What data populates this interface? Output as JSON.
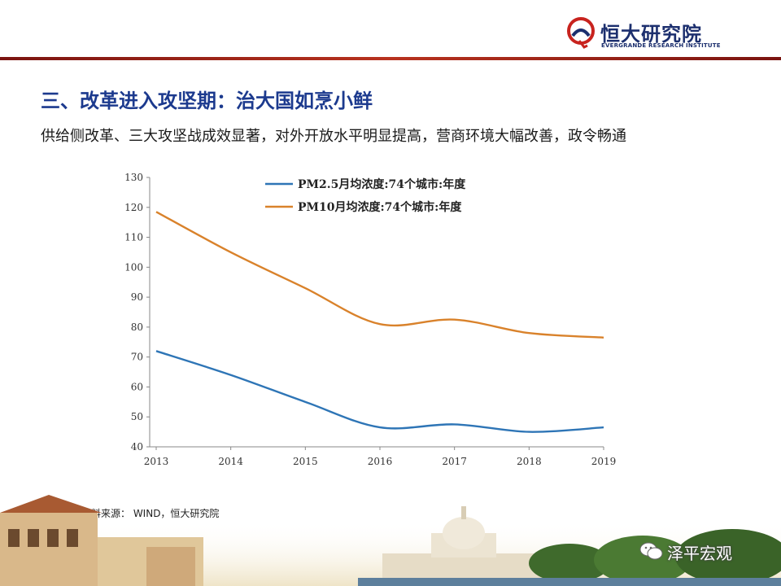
{
  "logo": {
    "name_cn": "恒大研究院",
    "name_en": "EVERGRANDE RESEARCH INSTITUTE",
    "brand_color": "#1c2f6e",
    "accent_color": "#c8231e"
  },
  "title": "三、改革进入攻坚期：治大国如烹小鲜",
  "subtitle": "供给侧改革、三大攻坚战成效显著，对外开放水平明显提高，营商环境大幅改善，政令畅通",
  "source": "资料来源： WIND，恒大研究院",
  "watermark": {
    "text": "泽平宏观",
    "icon": "wechat-icon"
  },
  "chart_data": {
    "type": "line",
    "x": [
      "2013",
      "2014",
      "2015",
      "2016",
      "2017",
      "2018",
      "2019"
    ],
    "series": [
      {
        "name": "PM2.5月均浓度:74个城市:年度",
        "color": "#2e75b6",
        "values": [
          72,
          64,
          55,
          46.5,
          47.5,
          45,
          46.5
        ]
      },
      {
        "name": "PM10月均浓度:74个城市:年度",
        "color": "#d9822b",
        "values": [
          118.5,
          105,
          93,
          81,
          82.5,
          78,
          76.5
        ]
      }
    ],
    "ylim": [
      40,
      130
    ],
    "yticks": [
      "40",
      "50",
      "60",
      "70",
      "80",
      "90",
      "100",
      "110",
      "120",
      "130"
    ],
    "legend_position": "top",
    "grid": false
  }
}
